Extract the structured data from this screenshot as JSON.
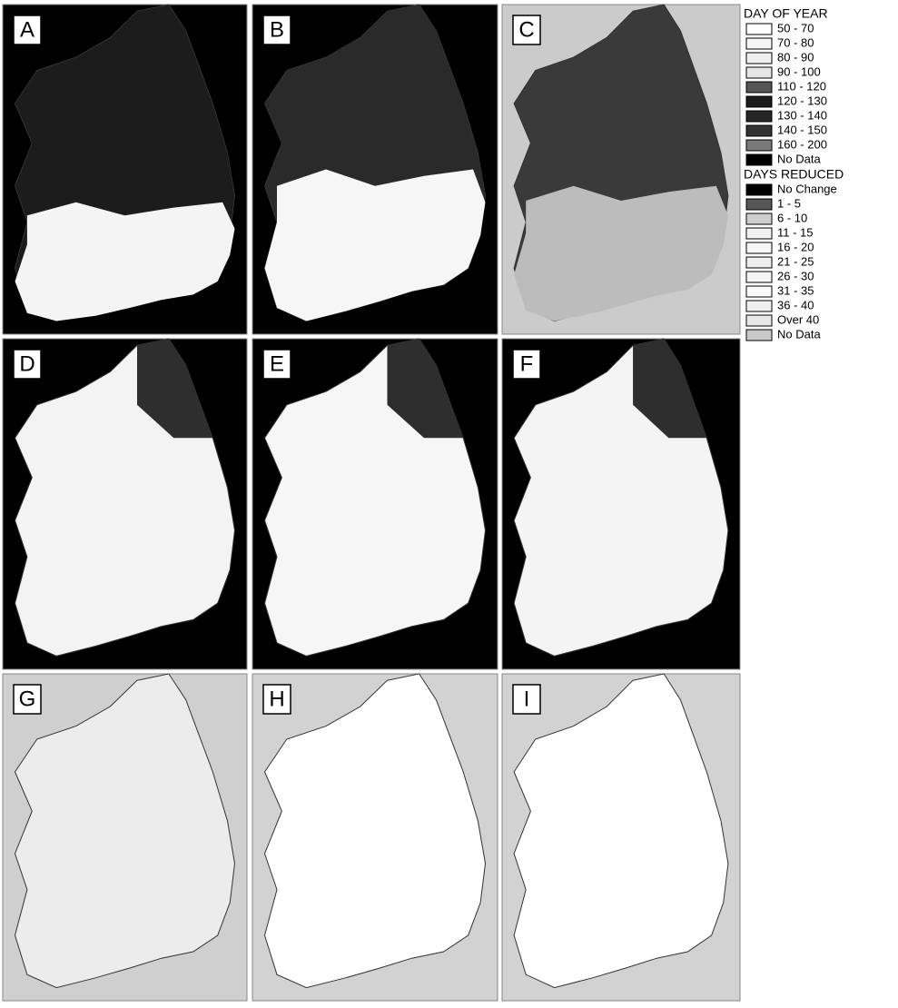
{
  "panels": [
    {
      "label": "A"
    },
    {
      "label": "B"
    },
    {
      "label": "C"
    },
    {
      "label": "D"
    },
    {
      "label": "E"
    },
    {
      "label": "F"
    },
    {
      "label": "G"
    },
    {
      "label": "H"
    },
    {
      "label": "I"
    }
  ],
  "legend": {
    "sections": [
      {
        "title": "DAY OF YEAR",
        "items": [
          {
            "label": "50 - 70",
            "color": "#ffffff"
          },
          {
            "label": "70 - 80",
            "color": "#f6f6f6"
          },
          {
            "label": "80 - 90",
            "color": "#efefef"
          },
          {
            "label": "90 - 100",
            "color": "#e6e6e6"
          },
          {
            "label": "110 - 120",
            "color": "#555555"
          },
          {
            "label": "120 - 130",
            "color": "#1a1a1a"
          },
          {
            "label": "130 - 140",
            "color": "#262626"
          },
          {
            "label": "140 - 150",
            "color": "#333333"
          },
          {
            "label": "160 - 200",
            "color": "#7a7a7a"
          },
          {
            "label": "No Data",
            "color": "#000000"
          }
        ]
      },
      {
        "title": "DAYS REDUCED",
        "items": [
          {
            "label": "No Change",
            "color": "#000000"
          },
          {
            "label": "1 - 5",
            "color": "#555555"
          },
          {
            "label": "6 - 10",
            "color": "#cfcfcf"
          },
          {
            "label": "11 - 15",
            "color": "#f2f2f2"
          },
          {
            "label": "16 - 20",
            "color": "#f7f7f7"
          },
          {
            "label": "21 - 25",
            "color": "#eeeeee"
          },
          {
            "label": "26 - 30",
            "color": "#f4f4f4"
          },
          {
            "label": "31 - 35",
            "color": "#fafafa"
          },
          {
            "label": "36 - 40",
            "color": "#f0f0f0"
          },
          {
            "label": "Over 40",
            "color": "#e8e8e8"
          },
          {
            "label": "No Data",
            "color": "#c8c8c8"
          }
        ]
      }
    ]
  }
}
